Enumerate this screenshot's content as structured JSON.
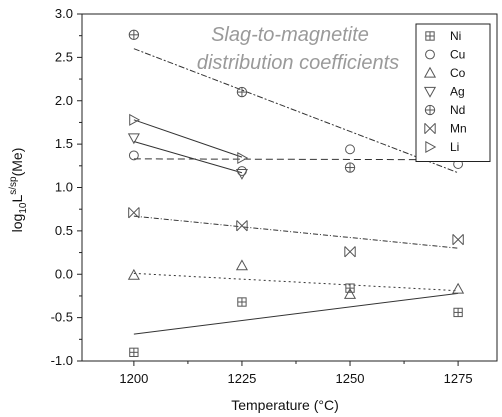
{
  "chart_data": {
    "type": "scatter",
    "title_line1": "Slag-to-magnetite",
    "title_line2": "distribution coefficients",
    "xlabel": "Temperature (°C)",
    "ylabel_base": "log",
    "ylabel_sub": "10",
    "ylabel_L": "L",
    "ylabel_sup": "s/sp",
    "ylabel_tail": "(Me)",
    "xlim": [
      1188,
      1284
    ],
    "ylim": [
      -1.0,
      3.0
    ],
    "x_ticks": [
      "1200",
      "1225",
      "1250",
      "1275"
    ],
    "y_ticks": [
      "-1.0",
      "-0.5",
      "0.0",
      "0.5",
      "1.0",
      "1.5",
      "2.0",
      "2.5",
      "3.0"
    ],
    "grid": false,
    "legend_position": "top-right",
    "series": [
      {
        "name": "Ni",
        "marker": "boxplus",
        "x": [
          1200,
          1225,
          1250,
          1275
        ],
        "y": [
          -0.9,
          -0.32,
          -0.16,
          -0.44
        ],
        "fit": {
          "x": [
            1200,
            1275
          ],
          "y": [
            -0.69,
            -0.22
          ],
          "dash": "none"
        }
      },
      {
        "name": "Cu",
        "marker": "circle",
        "x": [
          1200,
          1225,
          1250,
          1275
        ],
        "y": [
          1.37,
          1.19,
          1.44,
          1.27
        ],
        "fit": {
          "x": [
            1200,
            1275
          ],
          "y": [
            1.33,
            1.32
          ],
          "dash": "7,4"
        }
      },
      {
        "name": "Co",
        "marker": "triangle-up",
        "x": [
          1200,
          1225,
          1250,
          1275
        ],
        "y": [
          -0.01,
          0.1,
          -0.23,
          -0.17
        ],
        "fit": {
          "x": [
            1200,
            1275
          ],
          "y": [
            0.01,
            -0.19
          ],
          "dash": "2,3"
        }
      },
      {
        "name": "Ag",
        "marker": "triangle-down",
        "x": [
          1200,
          1225
        ],
        "y": [
          1.57,
          1.16
        ],
        "fit": {
          "x": [
            1200,
            1225
          ],
          "y": [
            1.53,
            1.17
          ],
          "dash": "none"
        }
      },
      {
        "name": "Nd",
        "marker": "circle-plus",
        "x": [
          1200,
          1225,
          1250
        ],
        "y": [
          2.76,
          2.1,
          1.23
        ],
        "fit": {
          "x": [
            1200,
            1275
          ],
          "y": [
            2.6,
            1.17
          ],
          "dash": "6,2,2,2"
        }
      },
      {
        "name": "Mn",
        "marker": "x-box",
        "x": [
          1200,
          1225,
          1250,
          1275
        ],
        "y": [
          0.71,
          0.56,
          0.26,
          0.4
        ],
        "fit": {
          "x": [
            1200,
            1275
          ],
          "y": [
            0.67,
            0.3
          ],
          "dash": "5,2,1,2"
        }
      },
      {
        "name": "Li",
        "marker": "triangle-right",
        "x": [
          1200,
          1225
        ],
        "y": [
          1.78,
          1.34
        ],
        "fit": {
          "x": [
            1200,
            1225
          ],
          "y": [
            1.78,
            1.35
          ],
          "dash": "none"
        }
      }
    ]
  }
}
